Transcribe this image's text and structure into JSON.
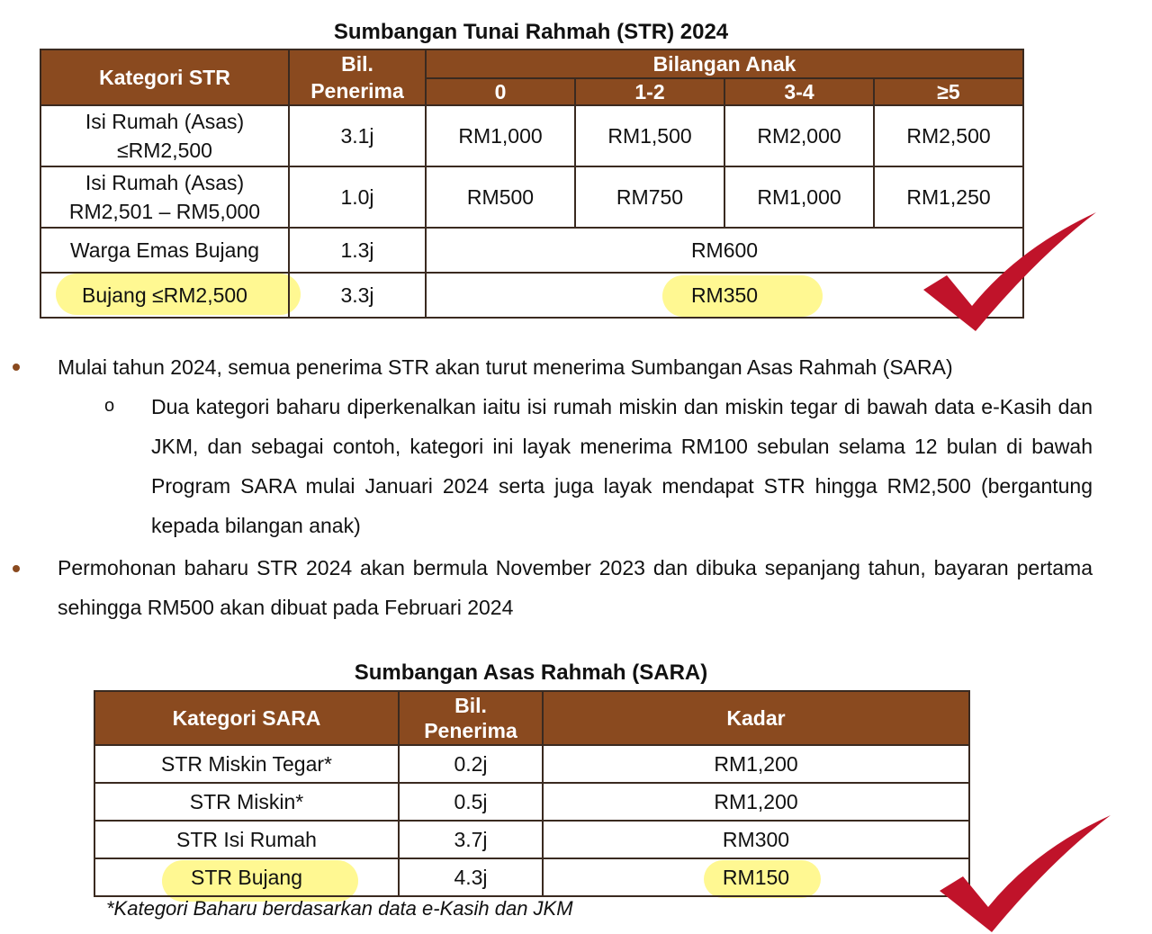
{
  "str": {
    "title": "Sumbangan Tunai Rahmah (STR) 2024",
    "headers": {
      "kategori": "Kategori STR",
      "bil_line1": "Bil.",
      "bil_line2": "Penerima",
      "bilangan_anak": "Bilangan Anak",
      "anak_cols": [
        "0",
        "1-2",
        "3-4",
        "≥5"
      ]
    },
    "rows": [
      {
        "kategori_line1": "Isi Rumah (Asas)",
        "kategori_line2": "≤RM2,500",
        "bil": "3.1j",
        "values": [
          "RM1,000",
          "RM1,500",
          "RM2,000",
          "RM2,500"
        ]
      },
      {
        "kategori_line1": "Isi Rumah (Asas)",
        "kategori_line2": "RM2,501 – RM5,000",
        "bil": "1.0j",
        "values": [
          "RM500",
          "RM750",
          "RM1,000",
          "RM1,250"
        ]
      },
      {
        "kategori": "Warga Emas Bujang",
        "bil": "1.3j",
        "value": "RM600"
      },
      {
        "kategori": "Bujang ≤RM2,500",
        "bil": "3.3j",
        "value": "RM350"
      }
    ]
  },
  "bullets": {
    "b1": "Mulai tahun 2024, semua penerima STR akan turut menerima Sumbangan Asas Rahmah (SARA)",
    "sub1": "Dua kategori baharu diperkenalkan iaitu isi rumah miskin dan miskin tegar di bawah data e-Kasih dan JKM, dan sebagai contoh, kategori ini layak menerima RM100 sebulan selama 12 bulan di bawah Program SARA mulai Januari 2024 serta juga layak mendapat STR hingga RM2,500 (bergantung kepada bilangan anak)",
    "b2": "Permohonan baharu STR 2024 akan bermula November 2023 dan dibuka sepanjang tahun, bayaran pertama sehingga RM500 akan dibuat pada Februari 2024",
    "sub_marker": "o"
  },
  "sara": {
    "title": "Sumbangan Asas Rahmah (SARA)",
    "headers": {
      "kategori": "Kategori SARA",
      "bil_line1": "Bil.",
      "bil_line2": "Penerima",
      "kadar": "Kadar"
    },
    "rows": [
      {
        "kategori": "STR Miskin Tegar*",
        "bil": "0.2j",
        "kadar": "RM1,200"
      },
      {
        "kategori": "STR Miskin*",
        "bil": "0.5j",
        "kadar": "RM1,200"
      },
      {
        "kategori": "STR Isi Rumah",
        "bil": "3.7j",
        "kadar": "RM300"
      },
      {
        "kategori": "STR Bujang",
        "bil": "4.3j",
        "kadar": "RM150"
      }
    ],
    "footnote": "*Kategori Baharu berdasarkan data e-Kasih dan JKM"
  },
  "colors": {
    "header_brown": "#8a4a1f",
    "highlight_yellow": "#fff66e",
    "checkmark_red": "#c0132a"
  },
  "icons": [
    "checkmark-icon"
  ]
}
